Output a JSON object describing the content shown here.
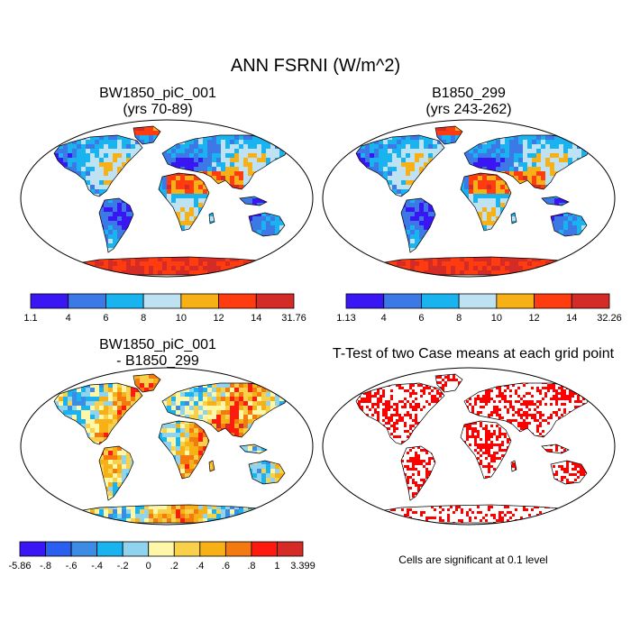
{
  "figure": {
    "title": "ANN FSRNI (W/m^2)",
    "colors": {
      "ocean": "#ffffff",
      "coast": "#000000",
      "significant": "#ff0000"
    }
  },
  "panels": {
    "case1": {
      "title_line1": "BW1850_piC_001",
      "title_line2": "(yrs 70-89)",
      "colorbar": {
        "labels": [
          "1.1",
          "4",
          "6",
          "8",
          "10",
          "12",
          "14",
          "31.76"
        ],
        "colors": [
          "#3b16f5",
          "#3c78e6",
          "#19b4f0",
          "#bfe2f2",
          "#f7b117",
          "#ff3b10",
          "#d52b26"
        ]
      }
    },
    "case2": {
      "title_line1": "B1850_299",
      "title_line2": "(yrs 243-262)",
      "colorbar": {
        "labels": [
          "1.13",
          "4",
          "6",
          "8",
          "10",
          "12",
          "14",
          "32.26"
        ],
        "colors": [
          "#3b16f5",
          "#3c78e6",
          "#19b4f0",
          "#bfe2f2",
          "#f7b117",
          "#ff3b10",
          "#d52b26"
        ]
      }
    },
    "diff": {
      "title_line1": "BW1850_piC_001",
      "title_line2": "- B1850_299",
      "colorbar": {
        "labels": [
          "-5.86",
          "-.8",
          "-.6",
          "-.4",
          "-.2",
          "0",
          ".2",
          ".4",
          ".6",
          ".8",
          "1",
          "3.399"
        ],
        "colors": [
          "#3b16f5",
          "#2a5ff0",
          "#3c8ce6",
          "#19b4f0",
          "#8fd3ef",
          "#fff7a8",
          "#f8d04a",
          "#f7b117",
          "#f47a0f",
          "#ff1a10",
          "#d52b26"
        ]
      }
    },
    "ttest": {
      "title": "T-Test of two Case means at each grid point",
      "note": "Cells are significant at 0.1 level"
    }
  }
}
